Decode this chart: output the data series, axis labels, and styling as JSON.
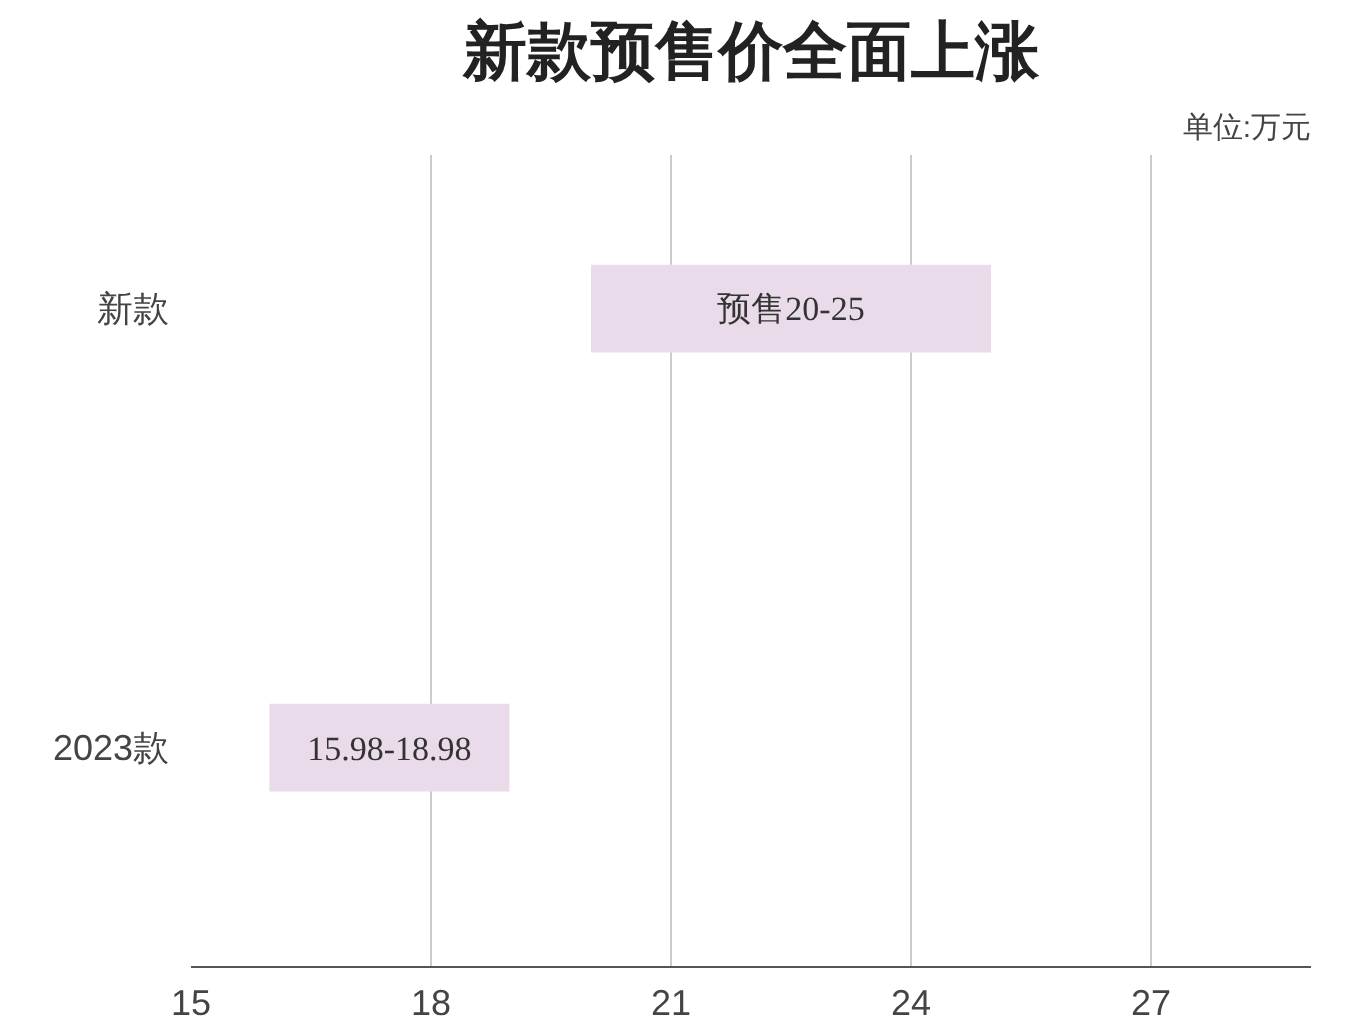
{
  "chart_data": {
    "type": "bar",
    "orientation": "horizontal",
    "title": "新款预售价全面上涨",
    "annotations": [
      "单位:万元"
    ],
    "categories": [
      "新款",
      "2023款"
    ],
    "base": [
      20,
      15.98
    ],
    "values": [
      5,
      3
    ],
    "value_labels": [
      "预售20-25",
      "15.98-18.98"
    ],
    "colors": [
      "#e9dbe9",
      "#e9dbe9"
    ],
    "xlim": [
      15,
      29
    ],
    "xticks": [
      15,
      18,
      21,
      24,
      27
    ],
    "grid": "x"
  }
}
